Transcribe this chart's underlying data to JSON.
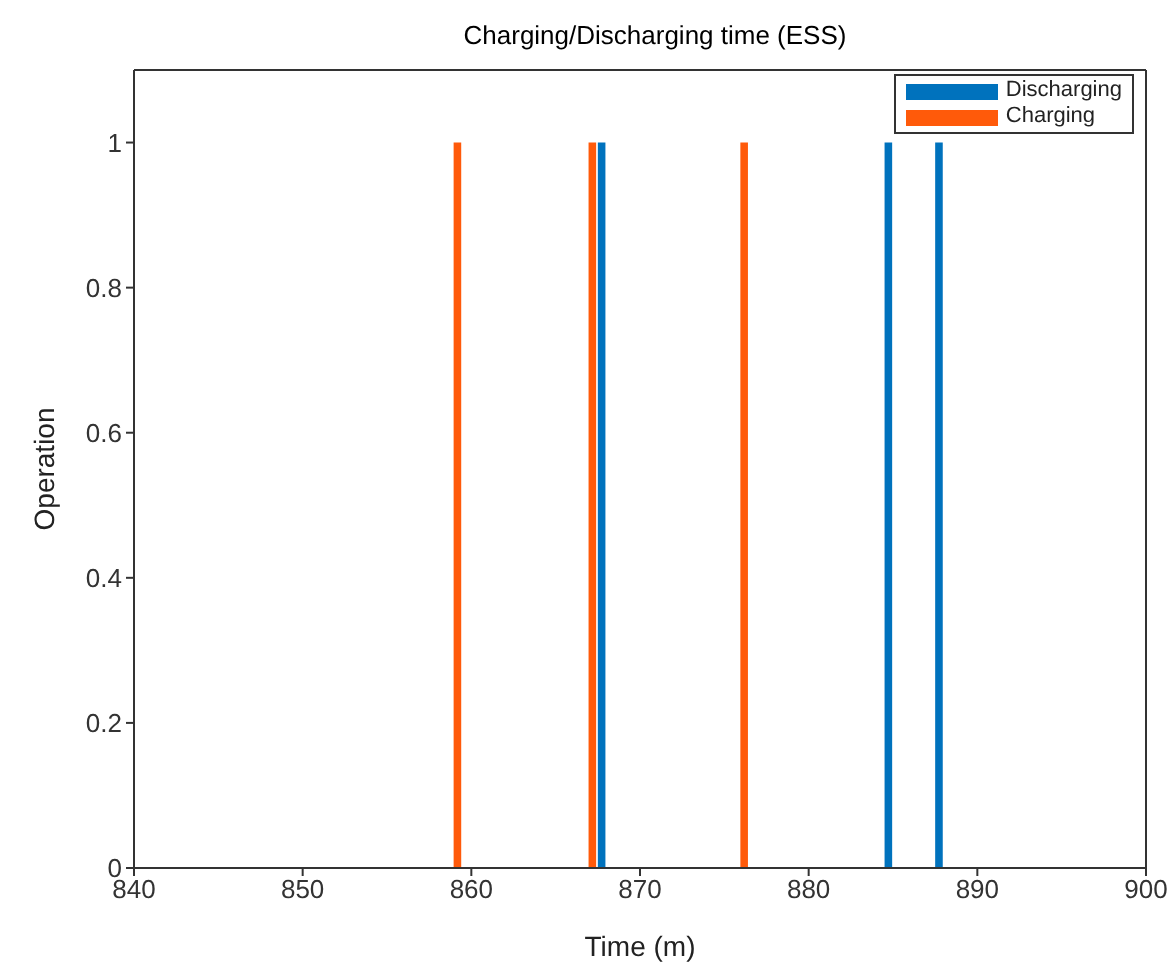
{
  "chart_data": {
    "type": "bar",
    "title": "Charging/Discharging time (ESS)",
    "xlabel": "Time (m)",
    "ylabel": "Operation",
    "xlim": [
      840,
      900
    ],
    "xticks": [
      840,
      850,
      860,
      870,
      880,
      890,
      900
    ],
    "ylim": [
      0,
      1.1
    ],
    "yticks": [
      0,
      0.2,
      0.4,
      0.6,
      0.8,
      1
    ],
    "series": [
      {
        "name": "Discharging",
        "color": "#0072bd",
        "x": [
          868,
          885,
          888
        ],
        "values": [
          1,
          1,
          1
        ]
      },
      {
        "name": "Charging",
        "color": "#ff5a0a",
        "x": [
          859,
          867,
          876
        ],
        "values": [
          1,
          1,
          1
        ]
      }
    ],
    "legend": "top right",
    "grid": false
  }
}
